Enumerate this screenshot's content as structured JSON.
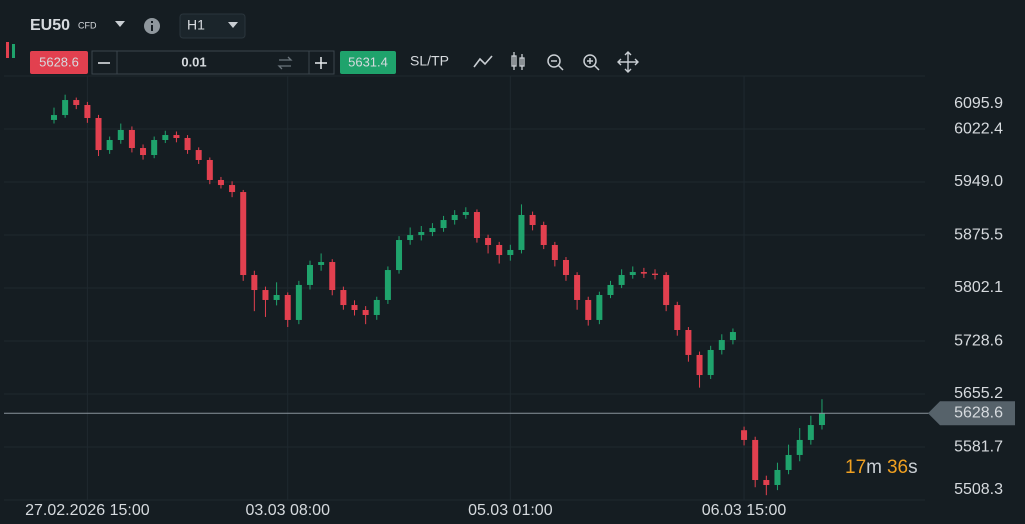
{
  "ui": {
    "symbol": "EU50",
    "instrument_type": "CFD",
    "timeframe": "H1",
    "bid": "5628.6",
    "quantity": "0.01",
    "ask": "5631.4",
    "sltp": "SL/TP",
    "countdown": {
      "minutes": "17",
      "minutes_unit": "m",
      "seconds": "36",
      "seconds_unit": "s"
    }
  },
  "chart_data": {
    "type": "candlestick",
    "up_color": "#1fa36c",
    "down_color": "#e2404f",
    "grid": true,
    "last_price_line": true,
    "open": [
      6035.0,
      6041.8,
      6062.6,
      6055.7,
      6037.7,
      5993.3,
      6007.2,
      6021.1,
      5996.1,
      5986.4,
      6007.2,
      6014.1,
      6010.0,
      5993.3,
      5979.5,
      5951.8,
      5944.8,
      5935.1,
      5820.1,
      5799.3,
      5785.5,
      5792.4,
      5757.8,
      5806.3,
      5834.0,
      5838.1,
      5799.3,
      5778.5,
      5771.6,
      5764.7,
      5785.5,
      5827.0,
      5868.6,
      5875.5,
      5879.7,
      5885.2,
      5896.3,
      5903.3,
      5907.4,
      5871.4,
      5861.7,
      5847.8,
      5854.8,
      5903.3,
      5889.4,
      5861.7,
      5840.9,
      5820.1,
      5785.5,
      5757.8,
      5792.4,
      5806.3,
      5820.1,
      5824.3,
      5822.0,
      5820.1,
      5778.5,
      5743.9,
      5709.3,
      5681.5,
      5716.2,
      5730.0,
      5605.0,
      5591.5,
      5536.0,
      5529.1,
      5549.9,
      5570.7,
      5591.5,
      5612.2
    ],
    "high": [
      6052.0,
      6070.0,
      6066.0,
      6060.0,
      6042.0,
      6012.0,
      6030.0,
      6026.0,
      6001.0,
      6012.0,
      6020.0,
      6019.0,
      6014.0,
      5997.0,
      5983.0,
      5956.0,
      5950.0,
      5938.0,
      5826.0,
      5804.0,
      5810.0,
      5796.0,
      5812.0,
      5840.0,
      5850.0,
      5842.0,
      5804.0,
      5785.0,
      5777.0,
      5790.0,
      5832.0,
      5874.0,
      5886.0,
      5888.0,
      5892.0,
      5902.0,
      5910.0,
      5914.0,
      5911.0,
      5876.0,
      5866.0,
      5862.0,
      5918.0,
      5908.0,
      5894.0,
      5866.0,
      5845.0,
      5824.0,
      5790.0,
      5797.0,
      5812.0,
      5828.0,
      5832.0,
      5830.0,
      5828.0,
      5824.0,
      5783.0,
      5748.0,
      5714.0,
      5722.0,
      5738.0,
      5746.0,
      5610.0,
      5596.0,
      5542.0,
      5560.0,
      5585.0,
      5608.0,
      5625.0,
      5648.0
    ],
    "low": [
      6030.0,
      6038.0,
      6050.0,
      6031.0,
      5985.0,
      5988.0,
      6002.0,
      5990.0,
      5980.0,
      5982.0,
      6003.0,
      6004.0,
      5988.0,
      5974.0,
      5946.0,
      5940.0,
      5928.0,
      5812.0,
      5770.0,
      5762.0,
      5778.0,
      5748.0,
      5752.0,
      5800.0,
      5826.0,
      5792.0,
      5772.0,
      5764.0,
      5752.0,
      5758.0,
      5780.0,
      5822.0,
      5862.0,
      5868.0,
      5874.0,
      5880.0,
      5890.0,
      5898.0,
      5865.0,
      5850.0,
      5836.0,
      5840.0,
      5850.0,
      5882.0,
      5856.0,
      5832.0,
      5812.0,
      5772.0,
      5750.0,
      5752.0,
      5788.0,
      5802.0,
      5815.0,
      5816.0,
      5814.0,
      5770.0,
      5736.0,
      5700.0,
      5664.0,
      5676.0,
      5710.0,
      5724.0,
      5584.0,
      5526.0,
      5515.0,
      5522.0,
      5544.0,
      5562.0,
      5585.0,
      5606.0
    ],
    "close": [
      6041.8,
      6062.6,
      6055.7,
      6037.7,
      5993.3,
      6007.2,
      6021.1,
      5996.1,
      5986.4,
      6007.2,
      6014.1,
      6010.0,
      5993.3,
      5979.5,
      5951.8,
      5944.8,
      5935.1,
      5820.1,
      5799.3,
      5785.5,
      5792.4,
      5757.8,
      5806.3,
      5834.0,
      5838.1,
      5799.3,
      5778.5,
      5771.6,
      5764.7,
      5785.5,
      5827.0,
      5868.6,
      5875.5,
      5879.7,
      5885.2,
      5896.3,
      5903.3,
      5907.4,
      5871.4,
      5861.7,
      5847.8,
      5854.8,
      5903.3,
      5889.4,
      5861.7,
      5840.9,
      5820.1,
      5785.5,
      5757.8,
      5792.4,
      5806.3,
      5820.1,
      5824.3,
      5822.0,
      5820.1,
      5778.5,
      5743.9,
      5709.3,
      5681.5,
      5716.2,
      5730.0,
      5741.1,
      5591.5,
      5536.0,
      5529.1,
      5549.9,
      5570.7,
      5591.5,
      5612.2,
      5628.6
    ],
    "ylim": [
      5508.3,
      6095.9
    ],
    "yticks": [
      6095.9,
      6022.4,
      {
        "value": 5949.0,
        "label": "5949.0"
      },
      5875.5,
      5802.1,
      5728.6,
      5655.2,
      5581.7,
      5508.3
    ],
    "xticks": [
      {
        "value": 3,
        "label": "27.02.2026 15:00"
      },
      {
        "value": 21,
        "label": "03.03 08:00"
      },
      {
        "value": 41,
        "label": "05.03 01:00"
      },
      {
        "value": 62,
        "label": "06.03 15:00"
      }
    ]
  }
}
